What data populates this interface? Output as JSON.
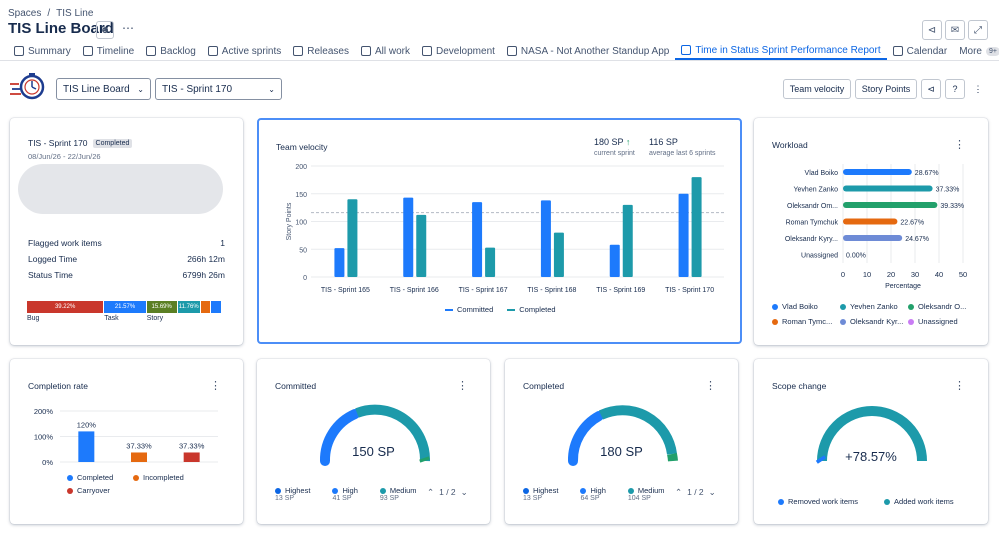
{
  "breadcrumb": {
    "spaces": "Spaces",
    "sep": "/",
    "project": "TIS Line"
  },
  "page": {
    "title": "TIS Line Board"
  },
  "tabs": [
    {
      "label": "Summary",
      "icon": "globe-icon"
    },
    {
      "label": "Timeline",
      "icon": "timeline-icon"
    },
    {
      "label": "Backlog",
      "icon": "backlog-icon"
    },
    {
      "label": "Active sprints",
      "icon": "board-icon"
    },
    {
      "label": "Releases",
      "icon": "ship-icon"
    },
    {
      "label": "All work",
      "icon": "list-icon"
    },
    {
      "label": "Development",
      "icon": "code-icon"
    },
    {
      "label": "NASA - Not Another Standup App",
      "icon": "nasa-icon"
    },
    {
      "label": "Time in Status Sprint Performance Report",
      "icon": "report-icon",
      "active": true
    },
    {
      "label": "Calendar",
      "icon": "calendar-icon"
    }
  ],
  "more": {
    "label": "More",
    "badge": "9+"
  },
  "toolbar": {
    "board_select": "TIS Line Board",
    "sprint_select": "TIS - Sprint 170",
    "team_velocity": "Team velocity",
    "story_points": "Story Points"
  },
  "sprint": {
    "name": "TIS - Sprint 170",
    "status": "Completed",
    "dates": "08/Jun/26 - 22/Jun/26",
    "rows": [
      {
        "label": "Flagged work items",
        "value": "1"
      },
      {
        "label": "Logged Time",
        "value": "266h 12m"
      },
      {
        "label": "Status Time",
        "value": "6799h 26m"
      }
    ],
    "bar": [
      {
        "pct": "39.22%",
        "color": "#c9372c",
        "frac": 0.3922
      },
      {
        "pct": "21.57%",
        "color": "#1d7afc",
        "frac": 0.2157
      },
      {
        "pct": "15.69%",
        "color": "#5b7f24",
        "frac": 0.1569
      },
      {
        "pct": "11.76%",
        "color": "#1d9aaa",
        "frac": 0.1176
      },
      {
        "pct": "",
        "color": "#e56910",
        "frac": 0.05
      },
      {
        "pct": "",
        "color": "#1d7afc",
        "frac": 0.06
      }
    ],
    "bar_labels": [
      "Bug",
      "Task",
      "Story"
    ]
  },
  "velocity": {
    "title": "Team velocity",
    "sp1": "180 SP",
    "sp1_sub": "current sprint",
    "sp2": "116 SP",
    "sp2_sub": "average last 6 sprints",
    "ylabel": "Story Points",
    "legend": [
      "Committed",
      "Completed"
    ]
  },
  "workload": {
    "title": "Workload",
    "xlabel": "Percentage",
    "people": [
      {
        "name": "Vlad Boiko",
        "pct": "28.67%",
        "val": 28.67,
        "color": "#1d7afc"
      },
      {
        "name": "Yevhen Zanko",
        "pct": "37.33%",
        "val": 37.33,
        "color": "#1d9aaa"
      },
      {
        "name": "Oleksandr Om...",
        "pct": "39.33%",
        "val": 39.33,
        "color": "#22a06b"
      },
      {
        "name": "Roman Tymchuk",
        "pct": "22.67%",
        "val": 22.67,
        "color": "#e56910"
      },
      {
        "name": "Oleksandr Kyry...",
        "pct": "24.67%",
        "val": 24.67,
        "color": "#6e8bd6"
      },
      {
        "name": "Unassigned",
        "pct": "0.00%",
        "val": 0,
        "color": "#c97cf4"
      }
    ],
    "legend": [
      "Vlad Boiko",
      "Yevhen Zanko",
      "Oleksandr O...",
      "Roman Tymc...",
      "Oleksandr Kyr...",
      "Unassigned"
    ]
  },
  "completion": {
    "title": "Completion rate",
    "legend": [
      {
        "label": "Completed",
        "color": "#1d7afc"
      },
      {
        "label": "Incompleted",
        "color": "#e56910"
      },
      {
        "label": "Carryover",
        "color": "#c9372c"
      }
    ]
  },
  "committed": {
    "title": "Committed",
    "center": "150 SP",
    "pager": "1 / 2",
    "legend": [
      {
        "label": "Highest",
        "sp": "13 SP",
        "color": "#0c66e4"
      },
      {
        "label": "High",
        "sp": "41 SP",
        "color": "#1d7afc"
      },
      {
        "label": "Medium",
        "sp": "93 SP",
        "color": "#1d9aaa"
      }
    ]
  },
  "completed": {
    "title": "Completed",
    "center": "180 SP",
    "pager": "1 / 2",
    "legend": [
      {
        "label": "Highest",
        "sp": "13 SP",
        "color": "#0c66e4"
      },
      {
        "label": "High",
        "sp": "64 SP",
        "color": "#1d7afc"
      },
      {
        "label": "Medium",
        "sp": "104 SP",
        "color": "#1d9aaa"
      }
    ]
  },
  "scope": {
    "title": "Scope change",
    "center": "+78.57%",
    "legend": [
      {
        "label": "Removed work items",
        "color": "#1d7afc"
      },
      {
        "label": "Added work items",
        "color": "#1d9aaa"
      }
    ]
  },
  "chart_data": [
    {
      "type": "bar",
      "title": "Team velocity",
      "ylabel": "Story Points",
      "ylim": [
        0,
        200
      ],
      "yticks": [
        0,
        50,
        100,
        150,
        200
      ],
      "reference_line": 116,
      "categories": [
        "TIS - Sprint 165",
        "TIS - Sprint 166",
        "TIS - Sprint 167",
        "TIS - Sprint 168",
        "TIS - Sprint 169",
        "TIS - Sprint 170"
      ],
      "series": [
        {
          "name": "Committed",
          "color": "#1d7afc",
          "values": [
            52,
            143,
            135,
            138,
            58,
            150
          ]
        },
        {
          "name": "Completed",
          "color": "#1d9aaa",
          "values": [
            140,
            112,
            53,
            80,
            130,
            180
          ]
        }
      ]
    },
    {
      "type": "bar",
      "title": "Workload",
      "orientation": "horizontal",
      "xlabel": "Percentage",
      "xlim": [
        0,
        50
      ],
      "xticks": [
        0,
        10,
        20,
        30,
        40,
        50
      ],
      "categories": [
        "Vlad Boiko",
        "Yevhen Zanko",
        "Oleksandr Om...",
        "Roman Tymchuk",
        "Oleksandr Kyry...",
        "Unassigned"
      ],
      "values": [
        28.67,
        37.33,
        39.33,
        22.67,
        24.67,
        0
      ]
    },
    {
      "type": "bar",
      "title": "Completion rate",
      "ylim": [
        0,
        200
      ],
      "yticks": [
        "0%",
        "100%",
        "200%"
      ],
      "categories": [
        "Completed",
        "Incompleted",
        "Carryover"
      ],
      "values": [
        120,
        37.33,
        37.33
      ],
      "labels": [
        "120%",
        "37.33%",
        "37.33%"
      ],
      "colors": [
        "#1d7afc",
        "#e56910",
        "#c9372c"
      ]
    }
  ]
}
